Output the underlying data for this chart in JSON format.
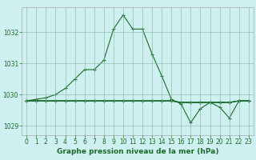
{
  "xlabel": "Graphe pression niveau de la mer (hPa)",
  "background_color": "#cff0f0",
  "grid_color": "#88bbaa",
  "line_color": "#1a6b2a",
  "xlim": [
    -0.5,
    23.5
  ],
  "ylim": [
    1028.7,
    1032.8
  ],
  "yticks": [
    1029,
    1030,
    1031,
    1032
  ],
  "xticks": [
    0,
    1,
    2,
    3,
    4,
    5,
    6,
    7,
    8,
    9,
    10,
    11,
    12,
    13,
    14,
    15,
    16,
    17,
    18,
    19,
    20,
    21,
    22,
    23
  ],
  "series": [
    [
      1029.8,
      1029.85,
      1029.9,
      1030.0,
      1030.2,
      1030.5,
      1030.8,
      1030.8,
      1031.1,
      1032.1,
      1032.55,
      1032.1,
      1032.1,
      1031.3,
      1030.6,
      1029.85,
      1029.7,
      1029.1,
      1029.55,
      1029.75,
      1029.6,
      1029.25,
      1029.8,
      1029.8
    ],
    [
      1029.8,
      1029.8,
      1029.8,
      1029.8,
      1029.8,
      1029.8,
      1029.8,
      1029.8,
      1029.8,
      1029.8,
      1029.8,
      1029.8,
      1029.8,
      1029.8,
      1029.8,
      1029.8,
      1029.75,
      1029.75,
      1029.75,
      1029.75,
      1029.75,
      1029.75,
      1029.8,
      1029.8
    ],
    [
      1029.8,
      1029.8,
      1029.8,
      1029.8,
      1029.8,
      1029.8,
      1029.8,
      1029.8,
      1029.8,
      1029.8,
      1029.8,
      1029.8,
      1029.8,
      1029.8,
      1029.8,
      1029.8,
      1029.75,
      1029.75,
      1029.75,
      1029.75,
      1029.75,
      1029.75,
      1029.8,
      1029.8
    ],
    [
      1029.8,
      1029.8,
      1029.8,
      1029.8,
      1029.8,
      1029.8,
      1029.8,
      1029.8,
      1029.8,
      1029.8,
      1029.8,
      1029.8,
      1029.8,
      1029.8,
      1029.8,
      1029.8,
      1029.75,
      1029.75,
      1029.75,
      1029.75,
      1029.75,
      1029.75,
      1029.8,
      1029.8
    ]
  ],
  "marker": "+",
  "markersize": 3,
  "linewidth": 0.8,
  "tick_fontsize": 5.5,
  "xlabel_fontsize": 6.5
}
